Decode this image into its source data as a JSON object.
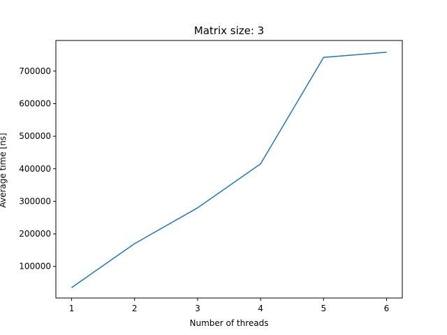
{
  "chart_data": {
    "type": "line",
    "title": "Matrix size: 3",
    "xlabel": "Number of threads",
    "ylabel": "Average time [ns]",
    "x": [
      1,
      2,
      3,
      4,
      5,
      6
    ],
    "series": [
      {
        "values": [
          35000,
          170000,
          280000,
          415000,
          742000,
          758000
        ],
        "color": "#1f77b4"
      }
    ],
    "xticks": [
      1,
      2,
      3,
      4,
      5,
      6
    ],
    "yticks": [
      100000,
      200000,
      300000,
      400000,
      500000,
      600000,
      700000
    ],
    "xlim": [
      0.75,
      6.25
    ],
    "ylim": [
      3000,
      794000
    ],
    "grid": false
  }
}
